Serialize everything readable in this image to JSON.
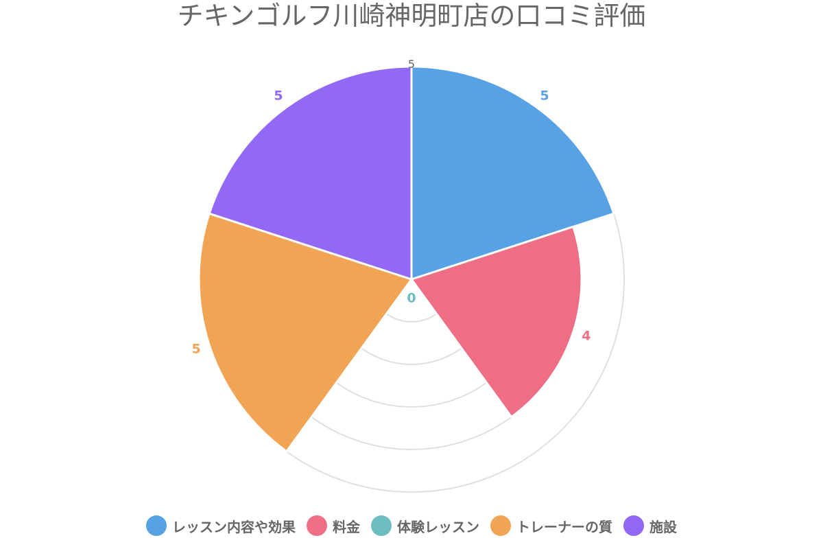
{
  "chart_data": {
    "type": "polarArea",
    "title": "チキンゴルフ川崎神明町店の口コミ評価",
    "categories": [
      "レッスン内容や効果",
      "料金",
      "体験レッスン",
      "トレーナーの質",
      "施設"
    ],
    "values": [
      5,
      4,
      0,
      5,
      5
    ],
    "colors": [
      "#57A1E5",
      "#EE6E86",
      "#6CBDBF",
      "#F1A454",
      "#9269F5"
    ],
    "value_labels": [
      "5",
      "4",
      "0",
      "5",
      "5"
    ],
    "r_range": [
      0,
      5
    ],
    "r_ticks": [
      "0",
      "1",
      "2",
      "3",
      "4",
      "5"
    ],
    "grid": true,
    "legend_position": "bottom"
  }
}
